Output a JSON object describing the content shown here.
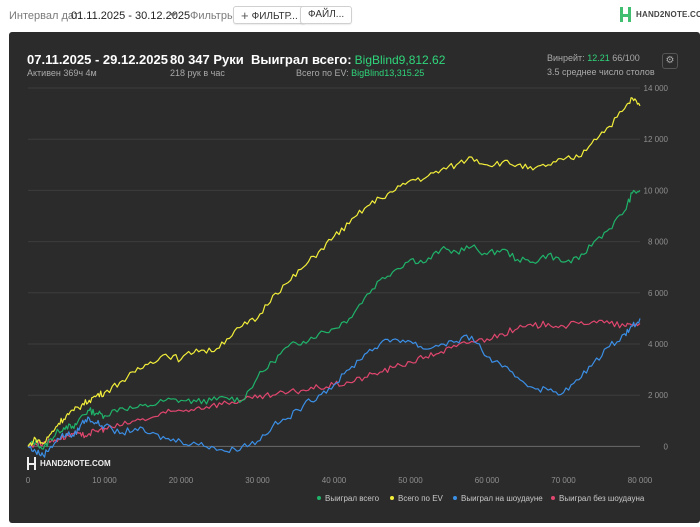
{
  "topbar": {
    "date_label": "Интервал дат:",
    "date_value": "01.11.2025 - 30.12.2025",
    "filters_label": "Фильтры:",
    "filters_button": "ФИЛЬТР...",
    "files_button": "ФАЙЛ...",
    "logo_text": "HAND2NOTE.COM"
  },
  "stats": {
    "date_range": "07.11.2025 - 29.12.2025",
    "active": "Активен 369ч 4м",
    "hands": "80 347 Руки",
    "hands_per_hour": "218 рук в час",
    "won_total_label": "Выиграл всего:",
    "won_total_value": "BigBlind9,812.62",
    "ev_total_label": "Всего по EV:",
    "ev_total_value": "BigBlind13,315.25",
    "winrate_label": "Винрейт:",
    "winrate_value": "12.21",
    "winrate_rest": "66/100",
    "tables_avg": "3.5 среднее число столов"
  },
  "watermark": "HAND2NOTE.COM",
  "colors": {
    "total": "#1fb36a",
    "ev": "#f2ee3a",
    "showdown": "#3b8fe6",
    "nonshowdown": "#e0466e"
  },
  "chart_data": {
    "type": "line",
    "title": "",
    "xlabel": "",
    "ylabel": "",
    "xlim": [
      0,
      80000
    ],
    "ylim": [
      -1000,
      14000
    ],
    "x_ticks": [
      "0",
      "10 000",
      "20 000",
      "30 000",
      "40 000",
      "50 000",
      "60 000",
      "70 000",
      "80 000"
    ],
    "y_ticks": [
      "0",
      "2 000",
      "4 000",
      "6 000",
      "8 000",
      "10 000",
      "12 000",
      "14 000"
    ],
    "grid": true,
    "legend_position": "bottom-right",
    "x": [
      0,
      1000,
      2000,
      3000,
      4000,
      5000,
      6000,
      7000,
      8000,
      9000,
      10000,
      12000,
      14000,
      16000,
      18000,
      20000,
      22000,
      24000,
      26000,
      28000,
      30000,
      32000,
      34000,
      36000,
      38000,
      40000,
      42000,
      44000,
      46000,
      48000,
      50000,
      52000,
      54000,
      56000,
      58000,
      60000,
      62000,
      64000,
      66000,
      68000,
      70000,
      72000,
      74000,
      76000,
      78000,
      79000,
      80000
    ],
    "series": [
      {
        "name": "Выиграл всего",
        "values": [
          0,
          200,
          -100,
          300,
          600,
          800,
          700,
          1200,
          1400,
          1300,
          1200,
          1500,
          1500,
          1600,
          1800,
          1800,
          1750,
          1800,
          1900,
          1800,
          2700,
          3300,
          3900,
          4100,
          4400,
          4600,
          5000,
          5800,
          6500,
          6900,
          7300,
          7200,
          7700,
          7600,
          7800,
          7500,
          7700,
          7300,
          7200,
          7500,
          7200,
          7300,
          8000,
          8500,
          9200,
          9900,
          10000
        ]
      },
      {
        "name": "Всего по EV",
        "values": [
          0,
          300,
          100,
          500,
          900,
          1200,
          1400,
          1600,
          1800,
          2000,
          2100,
          2500,
          2900,
          3300,
          3600,
          3400,
          3800,
          3700,
          4200,
          4700,
          5000,
          5900,
          6400,
          7000,
          7600,
          8200,
          8700,
          9300,
          9700,
          10000,
          10400,
          10500,
          10800,
          11000,
          11300,
          11000,
          11100,
          11000,
          10800,
          11000,
          11200,
          11300,
          12000,
          12500,
          13200,
          13600,
          13300
        ]
      },
      {
        "name": "Выиграл на шоудауне",
        "values": [
          0,
          -200,
          -350,
          0,
          300,
          500,
          400,
          900,
          1100,
          900,
          800,
          500,
          700,
          500,
          300,
          200,
          100,
          0,
          -200,
          0,
          200,
          800,
          1100,
          1600,
          2000,
          2400,
          3000,
          3600,
          4000,
          4200,
          4100,
          3800,
          4000,
          4100,
          4300,
          3500,
          3100,
          2700,
          2300,
          2200,
          2100,
          2600,
          3300,
          3900,
          4400,
          4700,
          5000
        ]
      },
      {
        "name": "Выиграл без шоудауна",
        "values": [
          0,
          100,
          150,
          200,
          300,
          400,
          500,
          400,
          500,
          600,
          700,
          800,
          1000,
          1100,
          1300,
          1400,
          1500,
          1600,
          1700,
          1800,
          1900,
          2000,
          2100,
          2200,
          2300,
          2400,
          2500,
          2700,
          2900,
          3100,
          3300,
          3500,
          3700,
          3900,
          4100,
          4200,
          4400,
          4600,
          4700,
          4800,
          4700,
          4800,
          4900,
          4800,
          4700,
          4750,
          4800
        ]
      }
    ]
  }
}
